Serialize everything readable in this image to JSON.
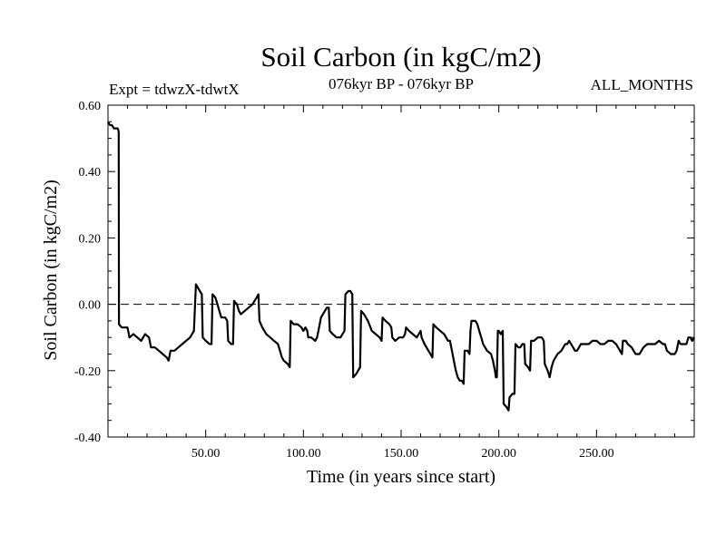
{
  "chart_data": {
    "type": "line",
    "title": "Soil Carbon (in kgC/m2)",
    "subtitle_left": "Expt = tdwzX-tdwtX",
    "subtitle_center": "076kyr BP - 076kyr BP",
    "subtitle_right": "ALL_MONTHS",
    "xlabel": "Time (in years since start)",
    "ylabel": "Soil Carbon (in kgC/m2)",
    "xlim": [
      0,
      300
    ],
    "ylim": [
      -0.4,
      0.6
    ],
    "x_ticks": [
      50,
      100,
      150,
      200,
      250
    ],
    "x_tick_labels": [
      "50.00",
      "100.00",
      "150.00",
      "200.00",
      "250.00"
    ],
    "y_ticks": [
      -0.4,
      -0.2,
      0.0,
      0.2,
      0.4,
      0.6
    ],
    "y_tick_labels": [
      "-0.40",
      "-0.20",
      "0.00",
      "0.20",
      "0.40",
      "0.60"
    ],
    "reference_line": {
      "y": 0.0,
      "style": "dashed"
    },
    "grid": false,
    "series": [
      {
        "color": "#000000",
        "points": [
          [
            0,
            0.55
          ],
          [
            1,
            0.54
          ],
          [
            2,
            0.54
          ],
          [
            3,
            0.53
          ],
          [
            5,
            0.53
          ],
          [
            5.5,
            0.52
          ],
          [
            5.6,
            -0.06
          ],
          [
            7,
            -0.07
          ],
          [
            10,
            -0.07
          ],
          [
            11,
            -0.1
          ],
          [
            13,
            -0.09
          ],
          [
            15,
            -0.1
          ],
          [
            17,
            -0.11
          ],
          [
            19,
            -0.09
          ],
          [
            21,
            -0.1
          ],
          [
            22,
            -0.13
          ],
          [
            24,
            -0.13
          ],
          [
            26,
            -0.14
          ],
          [
            28,
            -0.15
          ],
          [
            30,
            -0.16
          ],
          [
            31,
            -0.17
          ],
          [
            32,
            -0.14
          ],
          [
            34,
            -0.14
          ],
          [
            36,
            -0.13
          ],
          [
            38,
            -0.12
          ],
          [
            40,
            -0.11
          ],
          [
            42,
            -0.1
          ],
          [
            43,
            -0.09
          ],
          [
            44,
            -0.08
          ],
          [
            45,
            0.06
          ],
          [
            46,
            0.05
          ],
          [
            47,
            0.04
          ],
          [
            48,
            0.03
          ],
          [
            48.5,
            -0.1
          ],
          [
            50,
            -0.11
          ],
          [
            52,
            -0.12
          ],
          [
            53,
            -0.12
          ],
          [
            53.5,
            0.03
          ],
          [
            55,
            0.02
          ],
          [
            56,
            0.0
          ],
          [
            57,
            -0.02
          ],
          [
            58,
            -0.04
          ],
          [
            60,
            -0.04
          ],
          [
            61,
            -0.05
          ],
          [
            61.5,
            -0.11
          ],
          [
            63,
            -0.12
          ],
          [
            64,
            -0.12
          ],
          [
            64.5,
            0.01
          ],
          [
            66,
            0.0
          ],
          [
            67,
            -0.02
          ],
          [
            68,
            -0.03
          ],
          [
            70,
            -0.02
          ],
          [
            72,
            -0.01
          ],
          [
            74,
            0.0
          ],
          [
            76,
            0.02
          ],
          [
            77,
            0.03
          ],
          [
            77.5,
            -0.05
          ],
          [
            79,
            -0.07
          ],
          [
            81,
            -0.09
          ],
          [
            83,
            -0.1
          ],
          [
            85,
            -0.11
          ],
          [
            87,
            -0.12
          ],
          [
            88,
            -0.14
          ],
          [
            89,
            -0.16
          ],
          [
            90,
            -0.17
          ],
          [
            92,
            -0.18
          ],
          [
            93,
            -0.19
          ],
          [
            93.5,
            -0.05
          ],
          [
            95,
            -0.06
          ],
          [
            97,
            -0.06
          ],
          [
            99,
            -0.07
          ],
          [
            100,
            -0.08
          ],
          [
            101,
            -0.07
          ],
          [
            102,
            -0.08
          ],
          [
            102.5,
            -0.1
          ],
          [
            104,
            -0.1
          ],
          [
            106,
            -0.11
          ],
          [
            107,
            -0.1
          ],
          [
            108,
            -0.07
          ],
          [
            109,
            -0.04
          ],
          [
            111,
            -0.02
          ],
          [
            112,
            -0.01
          ],
          [
            113,
            -0.01
          ],
          [
            113.5,
            -0.08
          ],
          [
            115,
            -0.09
          ],
          [
            117,
            -0.1
          ],
          [
            119,
            -0.1
          ],
          [
            120,
            -0.09
          ],
          [
            121,
            -0.08
          ],
          [
            121.5,
            0.03
          ],
          [
            123,
            0.04
          ],
          [
            124,
            0.04
          ],
          [
            125,
            0.03
          ],
          [
            125.5,
            -0.22
          ],
          [
            127,
            -0.21
          ],
          [
            128,
            -0.2
          ],
          [
            129,
            -0.19
          ],
          [
            129.5,
            -0.02
          ],
          [
            131,
            -0.03
          ],
          [
            133,
            -0.05
          ],
          [
            135,
            -0.08
          ],
          [
            137,
            -0.09
          ],
          [
            139,
            -0.1
          ],
          [
            140,
            -0.11
          ],
          [
            140.5,
            -0.04
          ],
          [
            142,
            -0.05
          ],
          [
            144,
            -0.06
          ],
          [
            145,
            -0.07
          ],
          [
            145.5,
            -0.1
          ],
          [
            147,
            -0.11
          ],
          [
            149,
            -0.1
          ],
          [
            151,
            -0.1
          ],
          [
            152,
            -0.09
          ],
          [
            152.5,
            -0.07
          ],
          [
            154,
            -0.08
          ],
          [
            156,
            -0.09
          ],
          [
            158,
            -0.1
          ],
          [
            159,
            -0.09
          ],
          [
            160,
            -0.08
          ],
          [
            160.5,
            -0.1
          ],
          [
            162,
            -0.12
          ],
          [
            164,
            -0.14
          ],
          [
            165,
            -0.15
          ],
          [
            166,
            -0.16
          ],
          [
            166.5,
            -0.06
          ],
          [
            168,
            -0.07
          ],
          [
            170,
            -0.08
          ],
          [
            172,
            -0.09
          ],
          [
            173,
            -0.1
          ],
          [
            174,
            -0.11
          ],
          [
            175,
            -0.11
          ],
          [
            176,
            -0.14
          ],
          [
            177,
            -0.17
          ],
          [
            178,
            -0.2
          ],
          [
            179,
            -0.22
          ],
          [
            180,
            -0.23
          ],
          [
            181,
            -0.23
          ],
          [
            182,
            -0.24
          ],
          [
            182.5,
            -0.14
          ],
          [
            184,
            -0.14
          ],
          [
            185,
            -0.15
          ],
          [
            185.5,
            -0.08
          ],
          [
            186,
            -0.05
          ],
          [
            188,
            -0.05
          ],
          [
            189,
            -0.06
          ],
          [
            190,
            -0.08
          ],
          [
            191,
            -0.1
          ],
          [
            192,
            -0.12
          ],
          [
            193,
            -0.13
          ],
          [
            194,
            -0.14
          ],
          [
            196,
            -0.15
          ],
          [
            197,
            -0.17
          ],
          [
            198,
            -0.2
          ],
          [
            198.5,
            -0.22
          ],
          [
            199,
            -0.22
          ],
          [
            199.5,
            -0.08
          ],
          [
            200,
            -0.08
          ],
          [
            201,
            -0.09
          ],
          [
            202,
            -0.08
          ],
          [
            202.5,
            -0.3
          ],
          [
            204,
            -0.31
          ],
          [
            205,
            -0.32
          ],
          [
            205.5,
            -0.28
          ],
          [
            207,
            -0.27
          ],
          [
            208,
            -0.27
          ],
          [
            208.5,
            -0.12
          ],
          [
            210,
            -0.13
          ],
          [
            211,
            -0.13
          ],
          [
            212,
            -0.12
          ],
          [
            213,
            -0.12
          ],
          [
            213.5,
            -0.18
          ],
          [
            215,
            -0.19
          ],
          [
            216,
            -0.2
          ],
          [
            216.5,
            -0.11
          ],
          [
            218,
            -0.11
          ],
          [
            220,
            -0.1
          ],
          [
            222,
            -0.1
          ],
          [
            223,
            -0.11
          ],
          [
            223.5,
            -0.18
          ],
          [
            225,
            -0.2
          ],
          [
            226,
            -0.22
          ],
          [
            227,
            -0.19
          ],
          [
            228,
            -0.17
          ],
          [
            230,
            -0.15
          ],
          [
            232,
            -0.14
          ],
          [
            233,
            -0.13
          ],
          [
            234,
            -0.12
          ],
          [
            235,
            -0.12
          ],
          [
            236,
            -0.11
          ],
          [
            237,
            -0.12
          ],
          [
            238,
            -0.13
          ],
          [
            239,
            -0.14
          ],
          [
            240,
            -0.14
          ],
          [
            241,
            -0.13
          ],
          [
            242,
            -0.12
          ],
          [
            244,
            -0.12
          ],
          [
            246,
            -0.12
          ],
          [
            248,
            -0.11
          ],
          [
            250,
            -0.11
          ],
          [
            252,
            -0.12
          ],
          [
            254,
            -0.12
          ],
          [
            256,
            -0.11
          ],
          [
            258,
            -0.11
          ],
          [
            260,
            -0.12
          ],
          [
            262,
            -0.14
          ],
          [
            263,
            -0.15
          ],
          [
            263.5,
            -0.11
          ],
          [
            265,
            -0.11
          ],
          [
            266,
            -0.12
          ],
          [
            268,
            -0.13
          ],
          [
            269,
            -0.14
          ],
          [
            270,
            -0.15
          ],
          [
            272,
            -0.15
          ],
          [
            274,
            -0.13
          ],
          [
            276,
            -0.12
          ],
          [
            278,
            -0.12
          ],
          [
            280,
            -0.12
          ],
          [
            282,
            -0.11
          ],
          [
            284,
            -0.12
          ],
          [
            285,
            -0.12
          ],
          [
            286,
            -0.14
          ],
          [
            288,
            -0.15
          ],
          [
            290,
            -0.15
          ],
          [
            291,
            -0.14
          ],
          [
            292,
            -0.11
          ],
          [
            293,
            -0.12
          ],
          [
            295,
            -0.12
          ],
          [
            296,
            -0.12
          ],
          [
            297,
            -0.1
          ],
          [
            298,
            -0.1
          ],
          [
            299,
            -0.11
          ],
          [
            300,
            -0.1
          ]
        ]
      }
    ]
  }
}
